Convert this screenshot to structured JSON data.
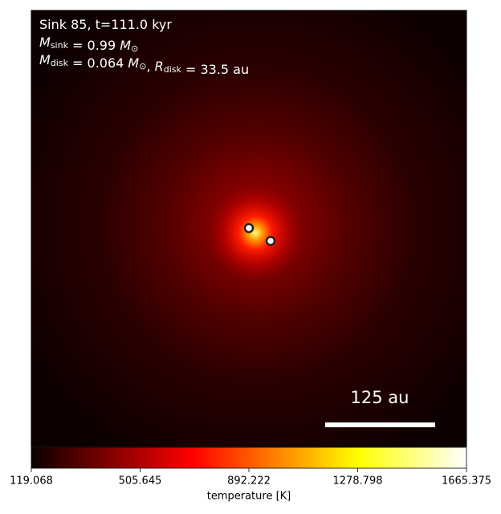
{
  "chart_data": {
    "type": "image",
    "annotation_lines": [
      [
        {
          "text": "Sink 85, t=111.0 kyr"
        }
      ],
      [
        {
          "text": "M",
          "sub": "sink"
        },
        {
          "text": " = 0.99 "
        },
        {
          "text": "M",
          "sub": "⊙"
        }
      ],
      [
        {
          "text": "M",
          "sub": "disk"
        },
        {
          "text": " = 0.064 "
        },
        {
          "text": "M",
          "sub": "⊙"
        },
        {
          "text": ", "
        },
        {
          "text": "R",
          "sub": "disk"
        },
        {
          "text": " = 33.5 au"
        }
      ]
    ],
    "scale_bar_label": "125 au",
    "colorbar": {
      "label": "temperature [K]",
      "lim": [
        119.068,
        1665.375
      ],
      "ticks": [
        119.068,
        505.645,
        892.222,
        1278.798,
        1665.375
      ]
    }
  }
}
